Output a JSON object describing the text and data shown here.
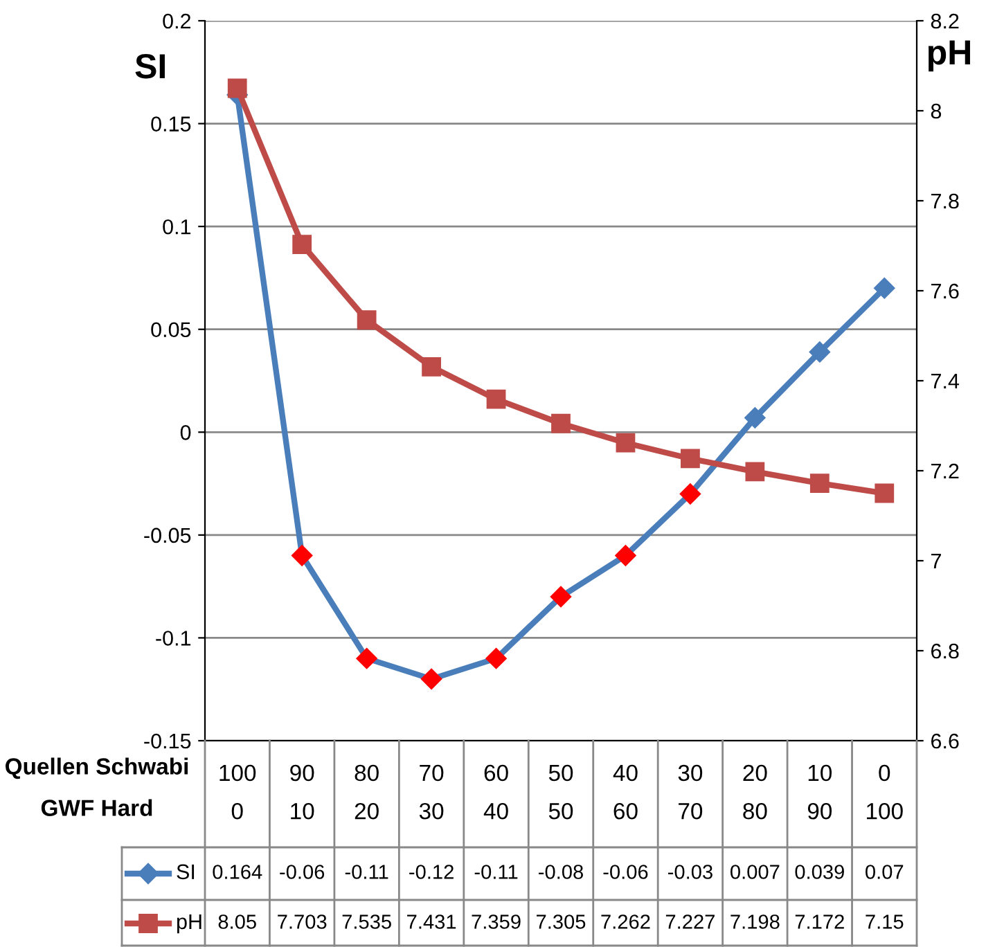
{
  "chart_data": {
    "type": "line",
    "ylabel": "SI",
    "y2label": "pH",
    "categories": [
      "100\n0",
      "90\n10",
      "80\n20",
      "70\n30",
      "60\n40",
      "50\n50",
      "40\n60",
      "30\n70",
      "20\n80",
      "10\n90",
      "0\n100"
    ],
    "annotations": [
      "Quellen Schwabi",
      "GWF Hard"
    ],
    "series": [
      {
        "name": "SI",
        "color": "#4a7ebb",
        "marker": "diamond",
        "colors": [
          "#4a7ebb",
          "#ff0000",
          "#ff0000",
          "#ff0000",
          "#ff0000",
          "#ff0000",
          "#ff0000",
          "#ff0000",
          "#4a7ebb",
          "#4a7ebb",
          "#4a7ebb"
        ],
        "values": [
          0.164,
          -0.06,
          -0.11,
          -0.12,
          -0.11,
          -0.08,
          -0.06,
          -0.03,
          0.007,
          0.039,
          0.07
        ]
      },
      {
        "name": "pH",
        "color": "#be4b48",
        "marker": "square",
        "axis": "y2",
        "values": [
          8.05,
          7.703,
          7.535,
          7.431,
          7.359,
          7.305,
          7.262,
          7.227,
          7.198,
          7.172,
          7.15
        ]
      }
    ],
    "ylim": [
      -0.15,
      0.2
    ],
    "yticks": [
      -0.15,
      -0.1,
      -0.05,
      0,
      0.05,
      0.1,
      0.15,
      0.2
    ],
    "y2lim": [
      6.6,
      8.2
    ],
    "y2ticks": [
      6.6,
      6.8,
      7,
      7.2,
      7.4,
      7.6,
      7.8,
      8,
      8.2
    ],
    "grid": "y",
    "legend": "bottom",
    "data_labels": true,
    "line_style": "solid"
  }
}
